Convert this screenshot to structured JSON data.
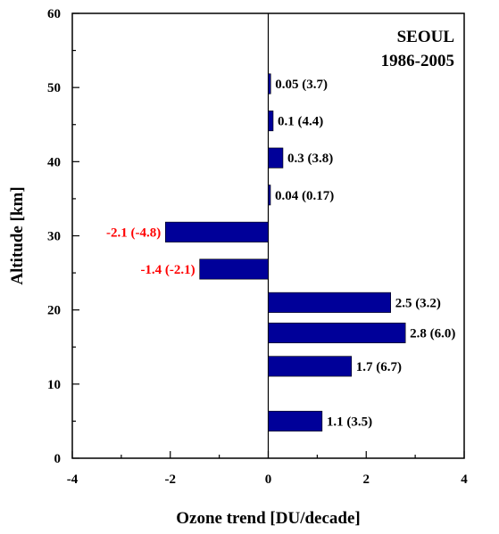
{
  "chart_data": {
    "type": "bar",
    "orientation": "horizontal",
    "title": "",
    "xlabel": "Ozone trend [DU/decade]",
    "ylabel": "Altitude [km]",
    "xlim": [
      -4,
      4
    ],
    "ylim": [
      0,
      60
    ],
    "xticks": [
      "-4",
      "-2",
      "0",
      "2",
      "4"
    ],
    "yticks": [
      "0",
      "10",
      "20",
      "30",
      "40",
      "50",
      "60"
    ],
    "annotation": [
      "SEOUL",
      "1986-2005"
    ],
    "bar_color": "#000099",
    "negative_label_color": "#ff0000",
    "positive_label_color": "#000000",
    "bars": [
      {
        "altitude": 50.5,
        "value": 0.05,
        "label": "0.05 (3.7)"
      },
      {
        "altitude": 45.5,
        "value": 0.1,
        "label": "0.1 (4.4)"
      },
      {
        "altitude": 40.5,
        "value": 0.3,
        "label": "0.3 (3.8)"
      },
      {
        "altitude": 35.5,
        "value": 0.04,
        "label": "0.04 (0.17)"
      },
      {
        "altitude": 30.5,
        "value": -2.1,
        "label": "-2.1 (-4.8)"
      },
      {
        "altitude": 25.5,
        "value": -1.4,
        "label": "-1.4 (-2.1)"
      },
      {
        "altitude": 21.0,
        "value": 2.5,
        "label": "2.5 (3.2)"
      },
      {
        "altitude": 16.9,
        "value": 2.8,
        "label": "2.8 (6.0)"
      },
      {
        "altitude": 12.4,
        "value": 1.7,
        "label": "1.7 (6.7)"
      },
      {
        "altitude": 5.0,
        "value": 1.1,
        "label": "1.1 (3.5)"
      }
    ]
  }
}
